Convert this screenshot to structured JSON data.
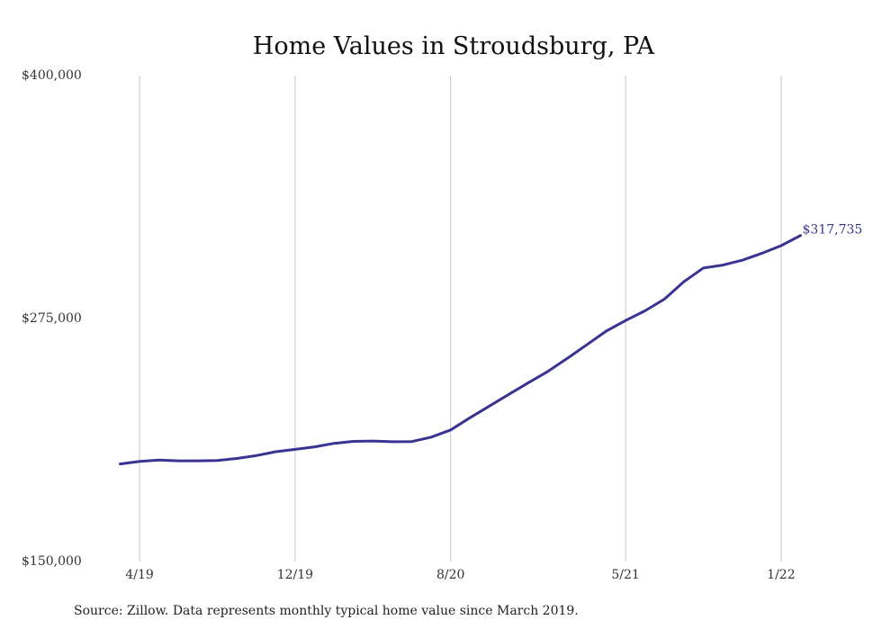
{
  "chart_data": {
    "type": "line",
    "title": "Home Values in Stroudsburg, PA",
    "xlabel": "",
    "ylabel": "",
    "ylim": [
      150000,
      400000
    ],
    "y_ticks": [
      {
        "value": 400000,
        "label": "$400,000"
      },
      {
        "value": 275000,
        "label": "$275,000"
      },
      {
        "value": 150000,
        "label": "$150,000"
      }
    ],
    "x_ticks": [
      {
        "date": "2019-04",
        "label": "4/19"
      },
      {
        "date": "2019-12",
        "label": "12/19"
      },
      {
        "date": "2020-08",
        "label": "8/20"
      },
      {
        "date": "2021-05",
        "label": "5/21"
      },
      {
        "date": "2022-01",
        "label": "1/22"
      }
    ],
    "grid": "vertical lines at x ticks",
    "series": [
      {
        "color": "#3a3391",
        "points": [
          {
            "date": "2019-03",
            "value": 200200
          },
          {
            "date": "2019-04",
            "value": 201500
          },
          {
            "date": "2019-05",
            "value": 202200
          },
          {
            "date": "2019-06",
            "value": 201800
          },
          {
            "date": "2019-07",
            "value": 201800
          },
          {
            "date": "2019-08",
            "value": 202000
          },
          {
            "date": "2019-09",
            "value": 203000
          },
          {
            "date": "2019-10",
            "value": 204500
          },
          {
            "date": "2019-11",
            "value": 206500
          },
          {
            "date": "2019-12",
            "value": 207700
          },
          {
            "date": "2020-01",
            "value": 209000
          },
          {
            "date": "2020-02",
            "value": 210800
          },
          {
            "date": "2020-03",
            "value": 211800
          },
          {
            "date": "2020-04",
            "value": 212000
          },
          {
            "date": "2020-05",
            "value": 211600
          },
          {
            "date": "2020-06",
            "value": 211700
          },
          {
            "date": "2020-07",
            "value": 214000
          },
          {
            "date": "2020-08",
            "value": 217700
          },
          {
            "date": "2020-09",
            "value": 224000
          },
          {
            "date": "2020-10",
            "value": 230000
          },
          {
            "date": "2020-11",
            "value": 236000
          },
          {
            "date": "2020-12",
            "value": 242000
          },
          {
            "date": "2021-01",
            "value": 247800
          },
          {
            "date": "2021-02",
            "value": 254500
          },
          {
            "date": "2021-03",
            "value": 261500
          },
          {
            "date": "2021-04",
            "value": 268500
          },
          {
            "date": "2021-05",
            "value": 274000
          },
          {
            "date": "2021-06",
            "value": 279000
          },
          {
            "date": "2021-07",
            "value": 285000
          },
          {
            "date": "2021-08",
            "value": 294000
          },
          {
            "date": "2021-09",
            "value": 301000
          },
          {
            "date": "2021-10",
            "value": 302500
          },
          {
            "date": "2021-11",
            "value": 305000
          },
          {
            "date": "2021-12",
            "value": 308500
          },
          {
            "date": "2022-01",
            "value": 312500
          },
          {
            "date": "2022-02",
            "value": 317735
          }
        ]
      }
    ],
    "end_label": "$317,735",
    "source_note": "Source: Zillow. Data represents monthly typical home value since March 2019."
  }
}
